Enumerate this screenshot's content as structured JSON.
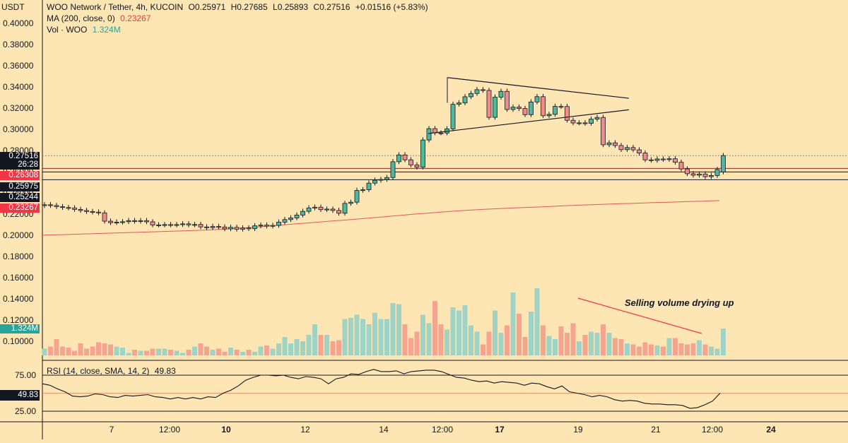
{
  "header": {
    "symbol": "WOO Network / Tether, 4h, KUCOIN",
    "o_label": "O",
    "o": "0.25971",
    "h_label": "H",
    "h": "0.27685",
    "l_label": "L",
    "l": "0.25893",
    "c_label": "C",
    "c": "0.27516",
    "change": "+0.01516 (+5.83%)",
    "ma_label": "MA (200, close, 0)",
    "ma_value": "0.23267",
    "vol_label": "Vol · WOO",
    "vol_value": "1.324M",
    "currency": "USDT"
  },
  "price_tags": {
    "last_price": "0.27516",
    "countdown": "26:28",
    "red_level": "0.26308",
    "level_1": "0.25975",
    "level_2": "0.25244",
    "ma": "0.23267",
    "volume": "1.324M",
    "rsi": "49.83"
  },
  "rsi": {
    "label": "RSI (14, close, SMA, 14, 2)",
    "value": "49.83",
    "upper": "75.00",
    "lower": "25.00"
  },
  "annotation": "Selling volume drying up",
  "colors": {
    "up": "#4fb89c",
    "down": "#ef8b8b",
    "background": "#fde5b4",
    "ma": "#e05a5a",
    "red_tag": "#f23645",
    "teal_tag": "#26a69a"
  },
  "chart_data": [
    {
      "type": "candlestick",
      "title": "WOO Network / Tether, 4h, KUCOIN",
      "yaxis_ticks": [
        "0.40000",
        "0.38000",
        "0.36000",
        "0.34000",
        "0.32000",
        "0.30000",
        "0.28000",
        "0.26000",
        "0.24000",
        "0.22000",
        "0.20000",
        "0.18000",
        "0.16000",
        "0.14000",
        "0.12000",
        "0.10000"
      ],
      "xaxis_ticks": [
        "7",
        "12:00",
        "10",
        "12",
        "14",
        "12:00",
        "17",
        "19",
        "21",
        "12:00",
        "24"
      ],
      "ylim": [
        0.085,
        0.412
      ],
      "close": [
        0.2288,
        0.2281,
        0.227,
        0.2262,
        0.2258,
        0.2244,
        0.2234,
        0.2224,
        0.2219,
        0.2211,
        0.2133,
        0.2119,
        0.2124,
        0.2128,
        0.2138,
        0.2132,
        0.2138,
        0.2127,
        0.2097,
        0.2098,
        0.2101,
        0.2098,
        0.2101,
        0.2108,
        0.2098,
        0.2102,
        0.2079,
        0.2072,
        0.2083,
        0.2078,
        0.206,
        0.2075,
        0.2057,
        0.2069,
        0.2062,
        0.2089,
        0.2096,
        0.2086,
        0.2093,
        0.2124,
        0.2148,
        0.2164,
        0.2191,
        0.2226,
        0.2258,
        0.2265,
        0.2242,
        0.2247,
        0.2234,
        0.2208,
        0.2301,
        0.2312,
        0.2423,
        0.243,
        0.2492,
        0.2519,
        0.2527,
        0.2545,
        0.2694,
        0.2758,
        0.2712,
        0.2664,
        0.2642,
        0.2899,
        0.3006,
        0.2966,
        0.2965,
        0.3004,
        0.3236,
        0.3249,
        0.3307,
        0.3338,
        0.3374,
        0.3367,
        0.3113,
        0.3303,
        0.3358,
        0.3187,
        0.3209,
        0.3196,
        0.3138,
        0.3258,
        0.3308,
        0.3128,
        0.3141,
        0.3216,
        0.3215,
        0.3085,
        0.306,
        0.3061,
        0.3056,
        0.3096,
        0.3112,
        0.2854,
        0.2872,
        0.2847,
        0.2808,
        0.2828,
        0.2806,
        0.2776,
        0.2712,
        0.2707,
        0.272,
        0.2715,
        0.2722,
        0.2689,
        0.2626,
        0.2581,
        0.2567,
        0.2578,
        0.2553,
        0.2564,
        0.2621,
        0.2752
      ],
      "open": [
        0.228,
        0.2288,
        0.2281,
        0.227,
        0.2262,
        0.2258,
        0.2244,
        0.2234,
        0.2224,
        0.2219,
        0.2211,
        0.2133,
        0.2119,
        0.2124,
        0.2128,
        0.2138,
        0.2132,
        0.2138,
        0.2127,
        0.2097,
        0.2098,
        0.2101,
        0.2098,
        0.2101,
        0.2108,
        0.2098,
        0.2102,
        0.2079,
        0.2072,
        0.2083,
        0.2078,
        0.206,
        0.2075,
        0.2057,
        0.2069,
        0.2062,
        0.2089,
        0.2096,
        0.2086,
        0.2093,
        0.2124,
        0.2148,
        0.2164,
        0.2191,
        0.2226,
        0.2258,
        0.2265,
        0.2242,
        0.2247,
        0.2234,
        0.2208,
        0.2301,
        0.2312,
        0.2423,
        0.243,
        0.2492,
        0.2519,
        0.2527,
        0.2545,
        0.2694,
        0.2758,
        0.2712,
        0.2664,
        0.2642,
        0.2899,
        0.3006,
        0.2966,
        0.2965,
        0.3004,
        0.3236,
        0.3249,
        0.3307,
        0.3338,
        0.3374,
        0.3367,
        0.3113,
        0.3303,
        0.3358,
        0.3187,
        0.3209,
        0.3196,
        0.3138,
        0.3258,
        0.3308,
        0.3128,
        0.3141,
        0.3216,
        0.3215,
        0.3085,
        0.306,
        0.3061,
        0.3056,
        0.3096,
        0.3112,
        0.2854,
        0.2872,
        0.2847,
        0.2808,
        0.2828,
        0.2806,
        0.2776,
        0.2712,
        0.2707,
        0.272,
        0.2715,
        0.2722,
        0.2689,
        0.2626,
        0.2581,
        0.2567,
        0.2578,
        0.2553,
        0.2564,
        0.2597
      ],
      "ma200": [
        0.2001,
        0.2005,
        0.201,
        0.2015,
        0.202,
        0.2025,
        0.203,
        0.2035,
        0.204,
        0.2045,
        0.2052,
        0.206,
        0.207,
        0.2082,
        0.2095,
        0.2108,
        0.212,
        0.2133,
        0.2145,
        0.2158,
        0.2172,
        0.2186,
        0.22,
        0.2212,
        0.2224,
        0.2235,
        0.2244,
        0.2252,
        0.2259,
        0.2265,
        0.2272,
        0.228,
        0.2286,
        0.2292,
        0.2297,
        0.2302,
        0.2307,
        0.2312,
        0.2317,
        0.2322,
        0.2327
      ],
      "volume": [
        0.093,
        0.095,
        0.102,
        0.095,
        0.094,
        0.091,
        0.098,
        0.093,
        0.095,
        0.099,
        0.098,
        0.097,
        0.095,
        0.094,
        0.089,
        0.092,
        0.091,
        0.091,
        0.093,
        0.093,
        0.093,
        0.092,
        0.091,
        0.089,
        0.092,
        0.095,
        0.098,
        0.095,
        0.092,
        0.093,
        0.09,
        0.094,
        0.092,
        0.09,
        0.092,
        0.09,
        0.095,
        0.096,
        0.093,
        0.098,
        0.104,
        0.098,
        0.102,
        0.1,
        0.106,
        0.116,
        0.106,
        0.106,
        0.1,
        0.101,
        0.121,
        0.122,
        0.125,
        0.121,
        0.116,
        0.127,
        0.121,
        0.121,
        0.136,
        0.135,
        0.116,
        0.103,
        0.109,
        0.125,
        0.117,
        0.138,
        0.116,
        0.111,
        0.132,
        0.129,
        0.134,
        0.115,
        0.109,
        0.097,
        0.109,
        0.129,
        0.108,
        0.115,
        0.146,
        0.126,
        0.104,
        0.128,
        0.15,
        0.115,
        0.105,
        0.102,
        0.114,
        0.108,
        0.117,
        0.1,
        0.106,
        0.109,
        0.108,
        0.116,
        0.108,
        0.103,
        0.102,
        0.098,
        0.097,
        0.095,
        0.099,
        0.097,
        0.096,
        0.095,
        0.103,
        0.103,
        0.098,
        0.097,
        0.098,
        0.101,
        0.097,
        0.095,
        0.093,
        0.112
      ],
      "volume_unit": "USDT axis scale"
    },
    {
      "type": "line",
      "title": "RSI (14, close, SMA, 14, 2)",
      "y_ticks": [
        "75.00",
        "25.00"
      ],
      "ylim": [
        10,
        86
      ],
      "values": [
        63,
        61,
        56,
        52,
        46,
        45,
        46,
        49,
        48,
        45,
        44,
        47,
        46,
        47,
        48,
        45,
        44,
        42,
        44,
        42,
        44,
        42,
        45,
        44,
        50,
        54,
        60,
        68,
        72,
        75,
        75,
        74,
        75,
        72,
        70,
        73,
        72,
        70,
        63,
        70,
        72,
        77,
        76,
        80,
        83,
        80,
        80,
        81,
        77,
        80,
        81,
        82,
        82,
        80,
        76,
        72,
        71,
        68,
        66,
        67,
        64,
        66,
        65,
        64,
        61,
        64,
        63,
        59,
        56,
        60,
        52,
        50,
        48,
        45,
        47,
        45,
        41,
        39,
        40,
        39,
        36,
        35,
        35,
        34,
        34,
        33,
        29,
        30,
        34,
        39,
        50
      ]
    }
  ]
}
